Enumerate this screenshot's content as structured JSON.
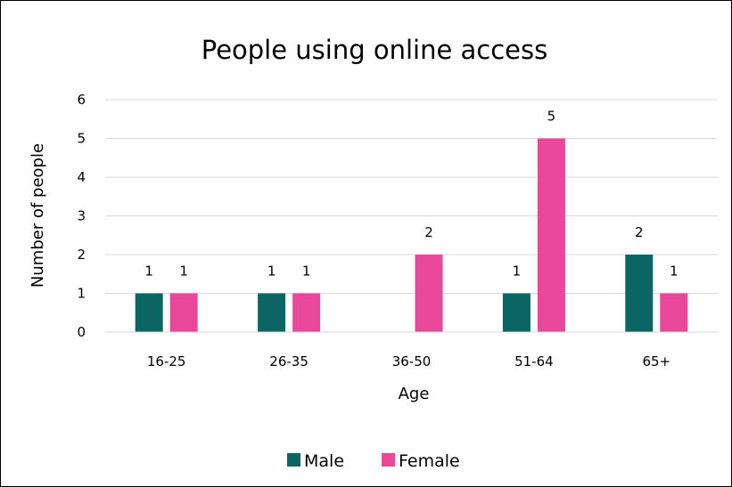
{
  "chart_data": {
    "type": "bar",
    "title": "People using online access",
    "xlabel": "Age",
    "ylabel": "Number of people",
    "categories": [
      "16-25",
      "26-35",
      "36-50",
      "51-64",
      "65+"
    ],
    "series": [
      {
        "name": "Male",
        "values": [
          1,
          1,
          null,
          1,
          2
        ],
        "color": "#0b6562"
      },
      {
        "name": "Female",
        "values": [
          1,
          1,
          2,
          5,
          1
        ],
        "color": "#e9479a"
      }
    ],
    "ylim": [
      0,
      6
    ],
    "yticks": [
      "0",
      "1",
      "2",
      "3",
      "4",
      "5",
      "6"
    ],
    "grid": true,
    "legend_position": "bottom"
  }
}
